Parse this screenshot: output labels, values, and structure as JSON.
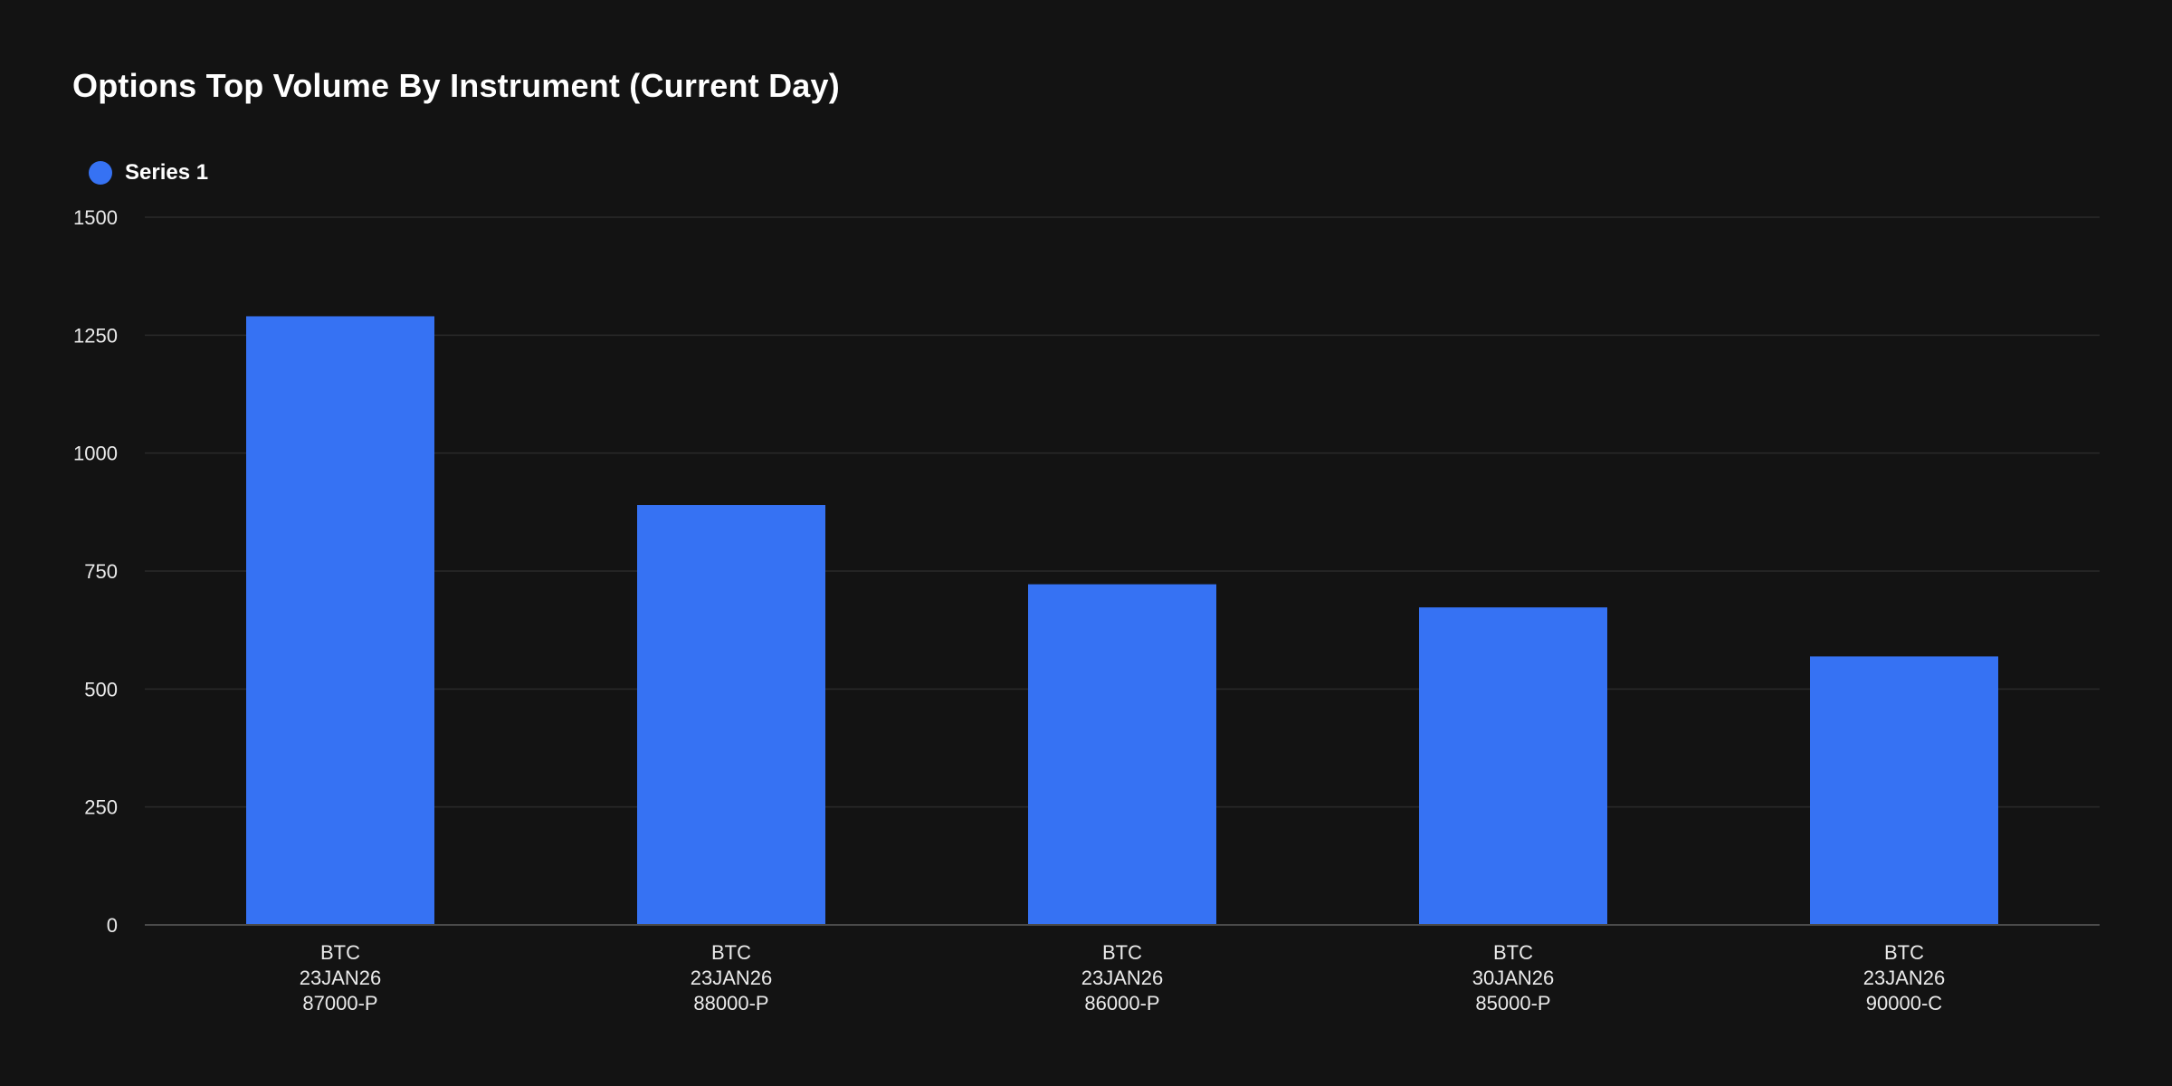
{
  "chart_data": {
    "type": "bar",
    "title": "Options Top Volume By Instrument (Current Day)",
    "xlabel": "",
    "ylabel": "",
    "ylim": [
      0,
      1500
    ],
    "yticks": [
      0,
      250,
      500,
      750,
      1000,
      1250,
      1500
    ],
    "grid": true,
    "legend_position": "top-left",
    "categories": [
      [
        "BTC",
        "23JAN26",
        "87000-P"
      ],
      [
        "BTC",
        "23JAN26",
        "88000-P"
      ],
      [
        "BTC",
        "23JAN26",
        "86000-P"
      ],
      [
        "BTC",
        "30JAN26",
        "85000-P"
      ],
      [
        "BTC",
        "23JAN26",
        "90000-C"
      ]
    ],
    "series": [
      {
        "name": "Series 1",
        "color": "#3672F3",
        "values": [
          1290,
          890,
          722,
          673,
          569
        ]
      }
    ]
  },
  "colors": {
    "background": "#131313",
    "bar": "#3672F3",
    "gridline": "#2a2a2a",
    "axis": "#4a4a4a",
    "text": "#eaeaea"
  }
}
